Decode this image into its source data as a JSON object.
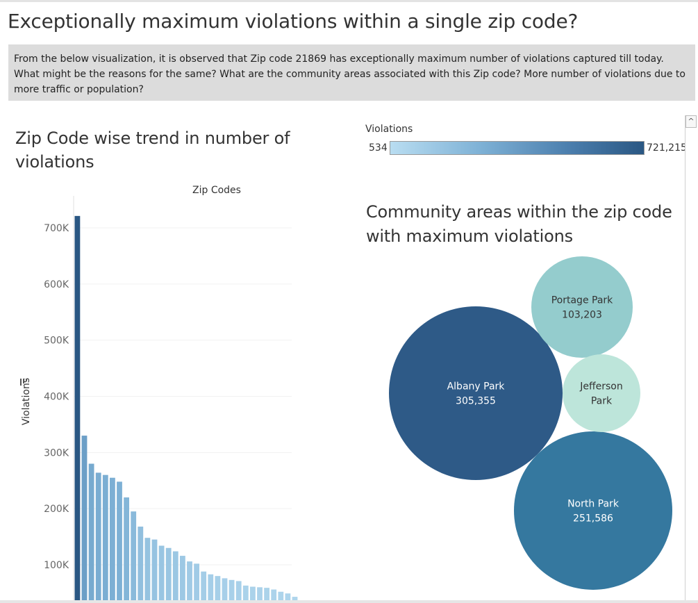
{
  "page_title": "Exceptionally maximum violations within a single zip code?",
  "question_text": "From the below visualization, it is observed that Zip code 21869 has exceptionally maximum number of violations captured till today. What might be the reasons for the same? What are the community areas  associated with this Zip code? More number of violations due to more traffic or population?",
  "legend": {
    "title": "Violations",
    "min_label": "534",
    "max_label": "721,215",
    "colors": [
      "#b9ddf1",
      "#7fb2d6",
      "#4c7fae",
      "#2a5783"
    ]
  },
  "scrollbar": {
    "up_icon": "chevron-up-icon"
  },
  "chart_data": [
    {
      "type": "bar",
      "title": "Zip Code wise trend in number of violations",
      "xlabel": "Zip Codes",
      "ylabel": "Violations",
      "sort_icon": "sort-descending-icon",
      "y_ticks": [
        100000,
        200000,
        300000,
        400000,
        500000,
        600000,
        700000
      ],
      "y_tick_labels": [
        "100K",
        "200K",
        "300K",
        "400K",
        "500K",
        "600K",
        "700K"
      ],
      "color_scale": {
        "min": 534,
        "max": 721215
      },
      "values": [
        721215,
        330000,
        280000,
        264000,
        260000,
        255000,
        248000,
        220000,
        195000,
        168000,
        148000,
        145000,
        134000,
        130000,
        124000,
        116000,
        106000,
        102000,
        88000,
        83000,
        80000,
        76000,
        73000,
        71000,
        63000,
        61000,
        60000,
        59000,
        56000,
        52000,
        49000,
        43000
      ]
    },
    {
      "type": "bubble",
      "title": "Community areas within the zip code with maximum violations",
      "items": [
        {
          "name": "Albany Park",
          "value_label": "305,355",
          "value": 305355,
          "color": "#2e5a87"
        },
        {
          "name": "North Park",
          "value_label": "251,586",
          "value": 251586,
          "color": "#35789f"
        },
        {
          "name": "Portage Park",
          "value_label": "103,203",
          "value": 103203,
          "color": "#94cccd"
        },
        {
          "name": "Jefferson Park",
          "name_lines": [
            "Jefferson",
            "Park"
          ],
          "value_label": "",
          "color": "#bde5da"
        }
      ]
    }
  ]
}
